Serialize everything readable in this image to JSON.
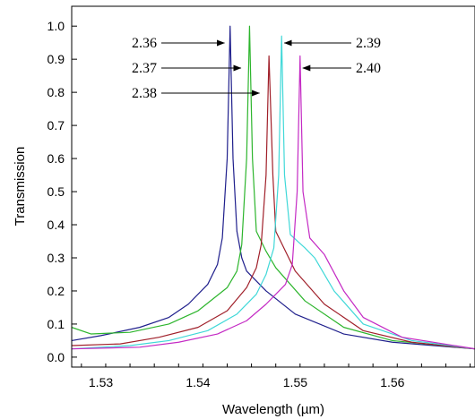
{
  "chart_data": {
    "type": "line",
    "xlabel": "Wavelength (µm)",
    "ylabel": "Transmission",
    "xlim": [
      1.527,
      1.5685
    ],
    "ylim": [
      -0.03,
      1.06
    ],
    "xticks": [
      1.53,
      1.54,
      1.55,
      1.56
    ],
    "yticks": [
      0.0,
      0.1,
      0.2,
      0.3,
      0.4,
      0.5,
      0.6,
      0.7,
      0.8,
      0.9,
      1.0
    ],
    "xtick_labels": [
      "1.53",
      "1.54",
      "1.55",
      "1.56"
    ],
    "ytick_labels": [
      "0.0",
      "0.1",
      "0.2",
      "0.3",
      "0.4",
      "0.5",
      "0.6",
      "0.7",
      "0.8",
      "0.9",
      "1.0"
    ],
    "grid": false,
    "series": [
      {
        "color": "#1f1f8c",
        "x": [
          1.527,
          1.53,
          1.534,
          1.537,
          1.539,
          1.541,
          1.542,
          1.5425,
          1.543,
          1.5433,
          1.5436,
          1.544,
          1.5445,
          1.545,
          1.547,
          1.55,
          1.555,
          1.56,
          1.5685
        ],
        "values": [
          0.05,
          0.065,
          0.09,
          0.12,
          0.16,
          0.22,
          0.28,
          0.36,
          0.6,
          1.0,
          0.6,
          0.38,
          0.3,
          0.26,
          0.2,
          0.13,
          0.07,
          0.045,
          0.025
        ]
      },
      {
        "color": "#2db52d",
        "x": [
          1.527,
          1.529,
          1.533,
          1.537,
          1.54,
          1.543,
          1.544,
          1.5445,
          1.545,
          1.5453,
          1.5456,
          1.546,
          1.547,
          1.548,
          1.551,
          1.555,
          1.56,
          1.5685
        ],
        "values": [
          0.09,
          0.07,
          0.075,
          0.1,
          0.14,
          0.21,
          0.26,
          0.34,
          0.6,
          1.0,
          0.6,
          0.38,
          0.32,
          0.27,
          0.17,
          0.09,
          0.05,
          0.025
        ]
      },
      {
        "color": "#a0202a",
        "x": [
          1.527,
          1.532,
          1.536,
          1.54,
          1.543,
          1.545,
          1.546,
          1.5465,
          1.547,
          1.5473,
          1.5477,
          1.548,
          1.549,
          1.55,
          1.553,
          1.557,
          1.562,
          1.5685
        ],
        "values": [
          0.035,
          0.04,
          0.06,
          0.09,
          0.14,
          0.21,
          0.27,
          0.34,
          0.55,
          0.91,
          0.55,
          0.38,
          0.32,
          0.26,
          0.16,
          0.08,
          0.045,
          0.025
        ]
      },
      {
        "color": "#40d8d8",
        "x": [
          1.527,
          1.533,
          1.537,
          1.541,
          1.544,
          1.546,
          1.547,
          1.5478,
          1.5483,
          1.5486,
          1.5489,
          1.5495,
          1.551,
          1.552,
          1.554,
          1.557,
          1.562,
          1.5685
        ],
        "values": [
          0.025,
          0.035,
          0.05,
          0.08,
          0.13,
          0.19,
          0.25,
          0.33,
          0.55,
          0.97,
          0.55,
          0.37,
          0.33,
          0.3,
          0.2,
          0.1,
          0.05,
          0.025
        ]
      },
      {
        "color": "#c42ac4",
        "x": [
          1.527,
          1.534,
          1.538,
          1.542,
          1.545,
          1.547,
          1.549,
          1.5497,
          1.5502,
          1.5505,
          1.5508,
          1.5515,
          1.553,
          1.555,
          1.557,
          1.561,
          1.5685
        ],
        "values": [
          0.025,
          0.03,
          0.045,
          0.07,
          0.11,
          0.16,
          0.22,
          0.28,
          0.5,
          0.91,
          0.5,
          0.36,
          0.31,
          0.2,
          0.12,
          0.06,
          0.025
        ]
      }
    ],
    "annotations": [
      {
        "text": "2.36",
        "series": 0,
        "target": [
          1.543,
          1.0
        ],
        "side": "left"
      },
      {
        "text": "2.37",
        "series": 1,
        "target": [
          1.5447,
          0.93
        ],
        "side": "left"
      },
      {
        "text": "2.38",
        "series": 2,
        "target": [
          1.5466,
          0.84
        ],
        "side": "left"
      },
      {
        "text": "2.39",
        "series": 3,
        "target": [
          1.5486,
          0.97
        ],
        "side": "right"
      },
      {
        "text": "2.40",
        "series": 4,
        "target": [
          1.5505,
          0.91
        ],
        "side": "right"
      }
    ]
  }
}
